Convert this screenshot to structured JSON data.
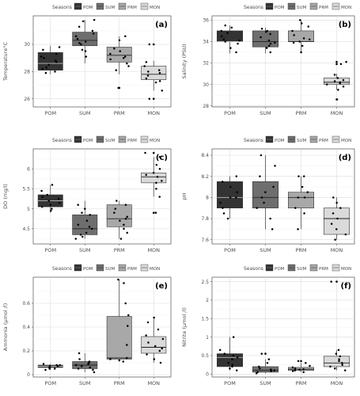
{
  "legend_title": "Seasons",
  "seasons": [
    {
      "name": "POM",
      "color": "#333333"
    },
    {
      "name": "SUM",
      "color": "#6e6e6e"
    },
    {
      "name": "PRM",
      "color": "#a8a8a8"
    },
    {
      "name": "MON",
      "color": "#dadada"
    }
  ],
  "chart_data": [
    {
      "type": "boxplot",
      "tag": "(a)",
      "ylabel": "Temperature°C",
      "categories": [
        "POM",
        "SUM",
        "PRM",
        "MON"
      ],
      "yticks": [
        26,
        28,
        30
      ],
      "ylim": [
        25.4,
        32.1
      ],
      "boxes": [
        {
          "min": 27.8,
          "q1": 28.1,
          "median": 28.6,
          "q3": 29.4,
          "max": 29.9,
          "outliers": []
        },
        {
          "min": 28.6,
          "q1": 29.9,
          "median": 30.3,
          "q3": 30.9,
          "max": 31.8,
          "outliers": []
        },
        {
          "min": 27.8,
          "q1": 28.7,
          "median": 29.2,
          "q3": 29.8,
          "max": 30.6,
          "outliers": [
            26.8
          ]
        },
        {
          "min": 26.6,
          "q1": 27.4,
          "median": 27.8,
          "q3": 28.4,
          "max": 28.8,
          "outliers": [
            26.0,
            30.0
          ]
        }
      ],
      "points": [
        [
          28.0,
          28.2,
          28.5,
          28.7,
          29.0,
          29.3,
          29.6,
          29.8,
          28.3,
          28.8,
          29.1,
          27.9
        ],
        [
          29.1,
          29.6,
          30.0,
          30.2,
          30.4,
          30.6,
          31.0,
          31.3,
          31.7,
          31.8,
          30.1,
          29.5,
          30.8
        ],
        [
          26.8,
          28.1,
          28.6,
          28.9,
          29.1,
          29.3,
          29.5,
          29.7,
          30.3,
          30.6,
          29.0,
          28.4
        ],
        [
          26.0,
          26.6,
          27.2,
          27.5,
          27.7,
          27.9,
          28.1,
          28.4,
          28.7,
          30.0,
          27.3,
          28.0
        ]
      ]
    },
    {
      "type": "boxplot",
      "tag": "(b)",
      "ylabel": "Salinity (PSU)",
      "categories": [
        "POM",
        "SUM",
        "PRM",
        "MON"
      ],
      "yticks": [
        28,
        30,
        32,
        34,
        36
      ],
      "ylim": [
        27.9,
        36.4
      ],
      "boxes": [
        {
          "min": 32.9,
          "q1": 34.0,
          "median": 34.0,
          "q3": 35.0,
          "max": 35.5,
          "outliers": []
        },
        {
          "min": 32.9,
          "q1": 33.5,
          "median": 34.0,
          "q3": 35.0,
          "max": 35.3,
          "outliers": []
        },
        {
          "min": 32.9,
          "q1": 34.0,
          "median": 34.0,
          "q3": 35.0,
          "max": 36.0,
          "outliers": []
        },
        {
          "min": 29.5,
          "q1": 30.0,
          "median": 30.2,
          "q3": 30.6,
          "max": 31.0,
          "outliers": [
            28.6,
            31.9,
            32.1
          ]
        }
      ],
      "points": [
        [
          33.0,
          33.4,
          33.8,
          34.0,
          34.2,
          34.5,
          34.8,
          35.0,
          35.3,
          35.5,
          34.1
        ],
        [
          33.0,
          33.4,
          33.6,
          33.9,
          34.1,
          34.4,
          34.7,
          35.0,
          35.2,
          33.8,
          34.9
        ],
        [
          33.0,
          33.6,
          33.9,
          34.0,
          34.2,
          34.6,
          35.0,
          35.4,
          35.7,
          36.0,
          34.3
        ],
        [
          28.6,
          29.5,
          29.8,
          30.0,
          30.1,
          30.2,
          30.4,
          30.6,
          30.9,
          31.9,
          32.1,
          30.3
        ]
      ]
    },
    {
      "type": "boxplot",
      "tag": "(c)",
      "ylabel": "DO (mg/l)",
      "categories": [
        "POM",
        "SUM",
        "PRM",
        "MON"
      ],
      "yticks": [
        4.5,
        5.0,
        5.5,
        6.0
      ],
      "ylim": [
        4.12,
        6.5
      ],
      "boxes": [
        {
          "min": 4.9,
          "q1": 5.05,
          "median": 5.2,
          "q3": 5.35,
          "max": 5.6,
          "outliers": []
        },
        {
          "min": 4.25,
          "q1": 4.35,
          "median": 4.5,
          "q3": 4.85,
          "max": 5.2,
          "outliers": []
        },
        {
          "min": 4.25,
          "q1": 4.55,
          "median": 4.75,
          "q3": 5.1,
          "max": 5.2,
          "outliers": []
        },
        {
          "min": 5.3,
          "q1": 5.65,
          "median": 5.8,
          "q3": 5.9,
          "max": 6.3,
          "outliers": [
            4.9,
            6.4
          ]
        }
      ],
      "points": [
        [
          4.95,
          5.0,
          5.05,
          5.1,
          5.15,
          5.2,
          5.25,
          5.3,
          5.35,
          5.45,
          5.6
        ],
        [
          4.25,
          4.3,
          4.35,
          4.4,
          4.5,
          4.55,
          4.6,
          4.7,
          4.85,
          4.9,
          5.0,
          5.1
        ],
        [
          4.25,
          4.4,
          4.5,
          4.6,
          4.7,
          4.75,
          4.8,
          4.9,
          5.0,
          5.1,
          5.2
        ],
        [
          4.9,
          5.3,
          5.5,
          5.65,
          5.7,
          5.8,
          5.85,
          5.9,
          6.0,
          6.1,
          6.3,
          6.4
        ]
      ]
    },
    {
      "type": "boxplot",
      "tag": "(d)",
      "ylabel": "pH",
      "categories": [
        "POM",
        "SUM",
        "PRM",
        "MON"
      ],
      "yticks": [
        7.6,
        7.8,
        8.0,
        8.2,
        8.4
      ],
      "ylim": [
        7.56,
        8.46
      ],
      "boxes": [
        {
          "min": 7.8,
          "q1": 7.9,
          "median": 8.0,
          "q3": 8.15,
          "max": 8.2,
          "outliers": []
        },
        {
          "min": 7.7,
          "q1": 7.9,
          "median": 8.0,
          "q3": 8.15,
          "max": 8.4,
          "outliers": []
        },
        {
          "min": 7.7,
          "q1": 7.9,
          "median": 8.0,
          "q3": 8.05,
          "max": 8.2,
          "outliers": []
        },
        {
          "min": 7.6,
          "q1": 7.65,
          "median": 7.8,
          "q3": 7.9,
          "max": 8.0,
          "outliers": []
        }
      ],
      "points": [
        [
          7.8,
          7.85,
          7.9,
          7.95,
          8.0,
          8.05,
          8.1,
          8.15,
          8.2,
          8.0
        ],
        [
          7.7,
          7.8,
          7.9,
          7.95,
          8.0,
          8.05,
          8.1,
          8.2,
          8.3,
          8.4
        ],
        [
          7.7,
          7.85,
          7.9,
          8.0,
          8.0,
          8.05,
          8.1,
          8.2,
          8.2
        ],
        [
          7.6,
          7.65,
          7.7,
          7.75,
          7.8,
          7.85,
          7.9,
          7.95,
          8.0
        ]
      ]
    },
    {
      "type": "boxplot",
      "tag": "(e)",
      "ylabel": "Ammonia (µmol /l)",
      "categories": [
        "POM",
        "SUM",
        "PRM",
        "MON"
      ],
      "yticks": [
        0.0,
        0.2,
        0.4,
        0.6
      ],
      "ylim": [
        -0.02,
        0.82
      ],
      "boxes": [
        {
          "min": 0.04,
          "q1": 0.06,
          "median": 0.07,
          "q3": 0.08,
          "max": 0.09,
          "outliers": []
        },
        {
          "min": 0.02,
          "q1": 0.05,
          "median": 0.08,
          "q3": 0.11,
          "max": 0.18,
          "outliers": []
        },
        {
          "min": 0.11,
          "q1": 0.13,
          "median": 0.14,
          "q3": 0.49,
          "max": 0.8,
          "outliers": []
        },
        {
          "min": 0.1,
          "q1": 0.18,
          "median": 0.23,
          "q3": 0.32,
          "max": 0.48,
          "outliers": []
        }
      ],
      "points": [
        [
          0.04,
          0.05,
          0.06,
          0.06,
          0.07,
          0.07,
          0.08,
          0.08,
          0.09,
          0.05
        ],
        [
          0.02,
          0.04,
          0.05,
          0.07,
          0.08,
          0.09,
          0.1,
          0.11,
          0.13,
          0.18,
          0.06
        ],
        [
          0.11,
          0.12,
          0.13,
          0.14,
          0.25,
          0.41,
          0.5,
          0.6,
          0.77,
          0.8
        ],
        [
          0.1,
          0.13,
          0.17,
          0.2,
          0.22,
          0.24,
          0.27,
          0.3,
          0.33,
          0.38,
          0.44,
          0.48
        ]
      ]
    },
    {
      "type": "boxplot",
      "tag": "(f)",
      "ylabel": "Nitrite (µmol /l)",
      "categories": [
        "POM",
        "SUM",
        "PRM",
        "MON"
      ],
      "yticks": [
        0.0,
        0.5,
        1.0,
        1.5,
        2.0,
        2.5
      ],
      "ylim": [
        -0.08,
        2.62
      ],
      "boxes": [
        {
          "min": 0.1,
          "q1": 0.2,
          "median": 0.45,
          "q3": 0.55,
          "max": 1.0,
          "outliers": []
        },
        {
          "min": 0.02,
          "q1": 0.05,
          "median": 0.1,
          "q3": 0.2,
          "max": 0.4,
          "outliers": [
            0.55
          ]
        },
        {
          "min": 0.05,
          "q1": 0.1,
          "median": 0.13,
          "q3": 0.18,
          "max": 0.3,
          "outliers": [
            0.35
          ]
        },
        {
          "min": 0.1,
          "q1": 0.2,
          "median": 0.3,
          "q3": 0.48,
          "max": 0.65,
          "outliers": [
            2.5
          ]
        }
      ],
      "points": [
        [
          0.1,
          0.15,
          0.2,
          0.3,
          0.4,
          0.45,
          0.5,
          0.55,
          0.65,
          1.0,
          0.25
        ],
        [
          0.02,
          0.05,
          0.08,
          0.1,
          0.12,
          0.15,
          0.2,
          0.3,
          0.4,
          0.55
        ],
        [
          0.05,
          0.08,
          0.1,
          0.12,
          0.13,
          0.15,
          0.18,
          0.22,
          0.3,
          0.35
        ],
        [
          0.1,
          0.15,
          0.2,
          0.25,
          0.3,
          0.35,
          0.4,
          0.48,
          0.55,
          0.65,
          2.5
        ]
      ]
    }
  ]
}
